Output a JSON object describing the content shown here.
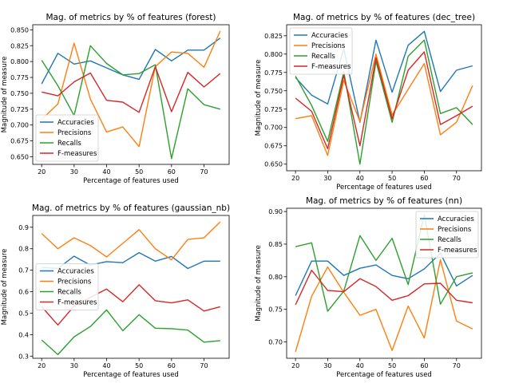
{
  "chart_data": [
    {
      "type": "line",
      "title": "Mag. of metrics by % of features (forest)",
      "xlabel": "Percentage of features used",
      "ylabel": "Magnitude of measure",
      "xlim": [
        17.25,
        77.75
      ],
      "ylim": [
        0.638,
        0.858
      ],
      "xticks": [
        20,
        30,
        40,
        50,
        60,
        70
      ],
      "yticks": [
        0.65,
        0.675,
        0.7,
        0.725,
        0.75,
        0.775,
        0.8,
        0.825,
        0.85
      ],
      "ytick_labels": [
        "0.650",
        "0.675",
        "0.700",
        "0.725",
        "0.750",
        "0.775",
        "0.800",
        "0.825",
        "0.850"
      ],
      "legend_location": "lower-left",
      "x": [
        20,
        25,
        30,
        35,
        40,
        45,
        50,
        55,
        60,
        65,
        70,
        75
      ],
      "series": [
        {
          "name": "Accuracies",
          "color": "#1f77b4",
          "values": [
            0.765,
            0.813,
            0.796,
            0.801,
            0.79,
            0.779,
            0.772,
            0.819,
            0.801,
            0.818,
            0.818,
            0.837
          ]
        },
        {
          "name": "Precisions",
          "color": "#ff7f0e",
          "values": [
            0.709,
            0.733,
            0.829,
            0.741,
            0.689,
            0.697,
            0.666,
            0.792,
            0.815,
            0.813,
            0.791,
            0.848
          ]
        },
        {
          "name": "Recalls",
          "color": "#2ca02c",
          "values": [
            0.802,
            0.762,
            0.715,
            0.825,
            0.797,
            0.779,
            0.781,
            0.795,
            0.647,
            0.757,
            0.732,
            0.725
          ]
        },
        {
          "name": "F-measures",
          "color": "#d62728",
          "values": [
            0.752,
            0.746,
            0.768,
            0.782,
            0.739,
            0.736,
            0.72,
            0.792,
            0.721,
            0.783,
            0.76,
            0.781
          ]
        }
      ]
    },
    {
      "type": "line",
      "title": "Mag. of metrics by % of features (dec_tree)",
      "xlabel": "Percentage of features used",
      "ylabel": "Magnitude of measure",
      "xlim": [
        17.25,
        77.75
      ],
      "ylim": [
        0.641,
        0.84
      ],
      "xticks": [
        20,
        30,
        40,
        50,
        60,
        70
      ],
      "yticks": [
        0.65,
        0.675,
        0.7,
        0.725,
        0.75,
        0.775,
        0.8,
        0.825
      ],
      "ytick_labels": [
        "0.650",
        "0.675",
        "0.700",
        "0.725",
        "0.750",
        "0.775",
        "0.800",
        "0.825"
      ],
      "legend_location": "top-left",
      "x": [
        20,
        25,
        30,
        35,
        40,
        45,
        50,
        55,
        60,
        65,
        70,
        75
      ],
      "series": [
        {
          "name": "Accuracies",
          "color": "#1f77b4",
          "values": [
            0.768,
            0.744,
            0.732,
            0.807,
            0.707,
            0.819,
            0.748,
            0.812,
            0.831,
            0.749,
            0.778,
            0.784
          ]
        },
        {
          "name": "Precisions",
          "color": "#ff7f0e",
          "values": [
            0.712,
            0.716,
            0.662,
            0.764,
            0.708,
            0.8,
            0.717,
            0.752,
            0.787,
            0.69,
            0.707,
            0.757
          ]
        },
        {
          "name": "Recalls",
          "color": "#2ca02c",
          "values": [
            0.77,
            0.73,
            0.681,
            0.776,
            0.65,
            0.79,
            0.707,
            0.797,
            0.819,
            0.719,
            0.727,
            0.704
          ]
        },
        {
          "name": "F-measures",
          "color": "#d62728",
          "values": [
            0.74,
            0.722,
            0.671,
            0.771,
            0.675,
            0.795,
            0.712,
            0.778,
            0.803,
            0.704,
            0.716,
            0.729
          ]
        }
      ]
    },
    {
      "type": "line",
      "title": "Mag. of metrics by % of features (gaussian_nb)",
      "xlabel": "Percentage of features used",
      "ylabel": "Magnitude of measure",
      "xlim": [
        17.25,
        77.75
      ],
      "ylim": [
        0.29,
        0.955
      ],
      "xticks": [
        20,
        30,
        40,
        50,
        60,
        70
      ],
      "yticks": [
        0.3,
        0.4,
        0.5,
        0.6,
        0.7,
        0.8,
        0.9
      ],
      "ytick_labels": [
        "0.3",
        "0.4",
        "0.5",
        "0.6",
        "0.7",
        "0.8",
        "0.9"
      ],
      "legend_location": "center-left",
      "x": [
        20,
        25,
        30,
        35,
        40,
        45,
        50,
        55,
        60,
        65,
        70,
        75
      ],
      "series": [
        {
          "name": "Accuracies",
          "color": "#1f77b4",
          "values": [
            0.713,
            0.708,
            0.765,
            0.724,
            0.74,
            0.735,
            0.782,
            0.742,
            0.764,
            0.708,
            0.742,
            0.742
          ]
        },
        {
          "name": "Precisions",
          "color": "#ff7f0e",
          "values": [
            0.871,
            0.8,
            0.851,
            0.815,
            0.762,
            0.825,
            0.889,
            0.8,
            0.748,
            0.843,
            0.851,
            0.925
          ]
        },
        {
          "name": "Recalls",
          "color": "#2ca02c",
          "values": [
            0.375,
            0.307,
            0.39,
            0.438,
            0.515,
            0.418,
            0.493,
            0.43,
            0.428,
            0.421,
            0.365,
            0.372
          ]
        },
        {
          "name": "F-measures",
          "color": "#d62728",
          "values": [
            0.53,
            0.445,
            0.533,
            0.574,
            0.612,
            0.553,
            0.632,
            0.558,
            0.548,
            0.562,
            0.51,
            0.53
          ]
        }
      ]
    },
    {
      "type": "line",
      "title": "Mag. of metrics by % of features (nn)",
      "xlabel": "Percentage of features used",
      "ylabel": "Magnitude of measure",
      "xlim": [
        17.25,
        77.75
      ],
      "ylim": [
        0.675,
        0.905
      ],
      "xticks": [
        20,
        30,
        40,
        50,
        60,
        70
      ],
      "yticks": [
        0.7,
        0.75,
        0.8,
        0.85,
        0.9
      ],
      "ytick_labels": [
        "0.70",
        "0.75",
        "0.80",
        "0.85",
        "0.90"
      ],
      "legend_location": "top-right",
      "x": [
        20,
        25,
        30,
        35,
        40,
        45,
        50,
        55,
        60,
        65,
        70,
        75
      ],
      "series": [
        {
          "name": "Accuracies",
          "color": "#1f77b4",
          "values": [
            0.771,
            0.824,
            0.824,
            0.802,
            0.813,
            0.818,
            0.802,
            0.797,
            0.812,
            0.836,
            0.786,
            0.802
          ]
        },
        {
          "name": "Precisions",
          "color": "#ff7f0e",
          "values": [
            0.685,
            0.77,
            0.815,
            0.776,
            0.741,
            0.75,
            0.687,
            0.755,
            0.706,
            0.826,
            0.732,
            0.72
          ]
        },
        {
          "name": "Recalls",
          "color": "#2ca02c",
          "values": [
            0.846,
            0.852,
            0.747,
            0.778,
            0.863,
            0.825,
            0.859,
            0.788,
            0.895,
            0.758,
            0.8,
            0.806
          ]
        },
        {
          "name": "F-measures",
          "color": "#d62728",
          "values": [
            0.757,
            0.81,
            0.779,
            0.777,
            0.797,
            0.785,
            0.764,
            0.771,
            0.789,
            0.79,
            0.764,
            0.76
          ]
        }
      ]
    }
  ]
}
